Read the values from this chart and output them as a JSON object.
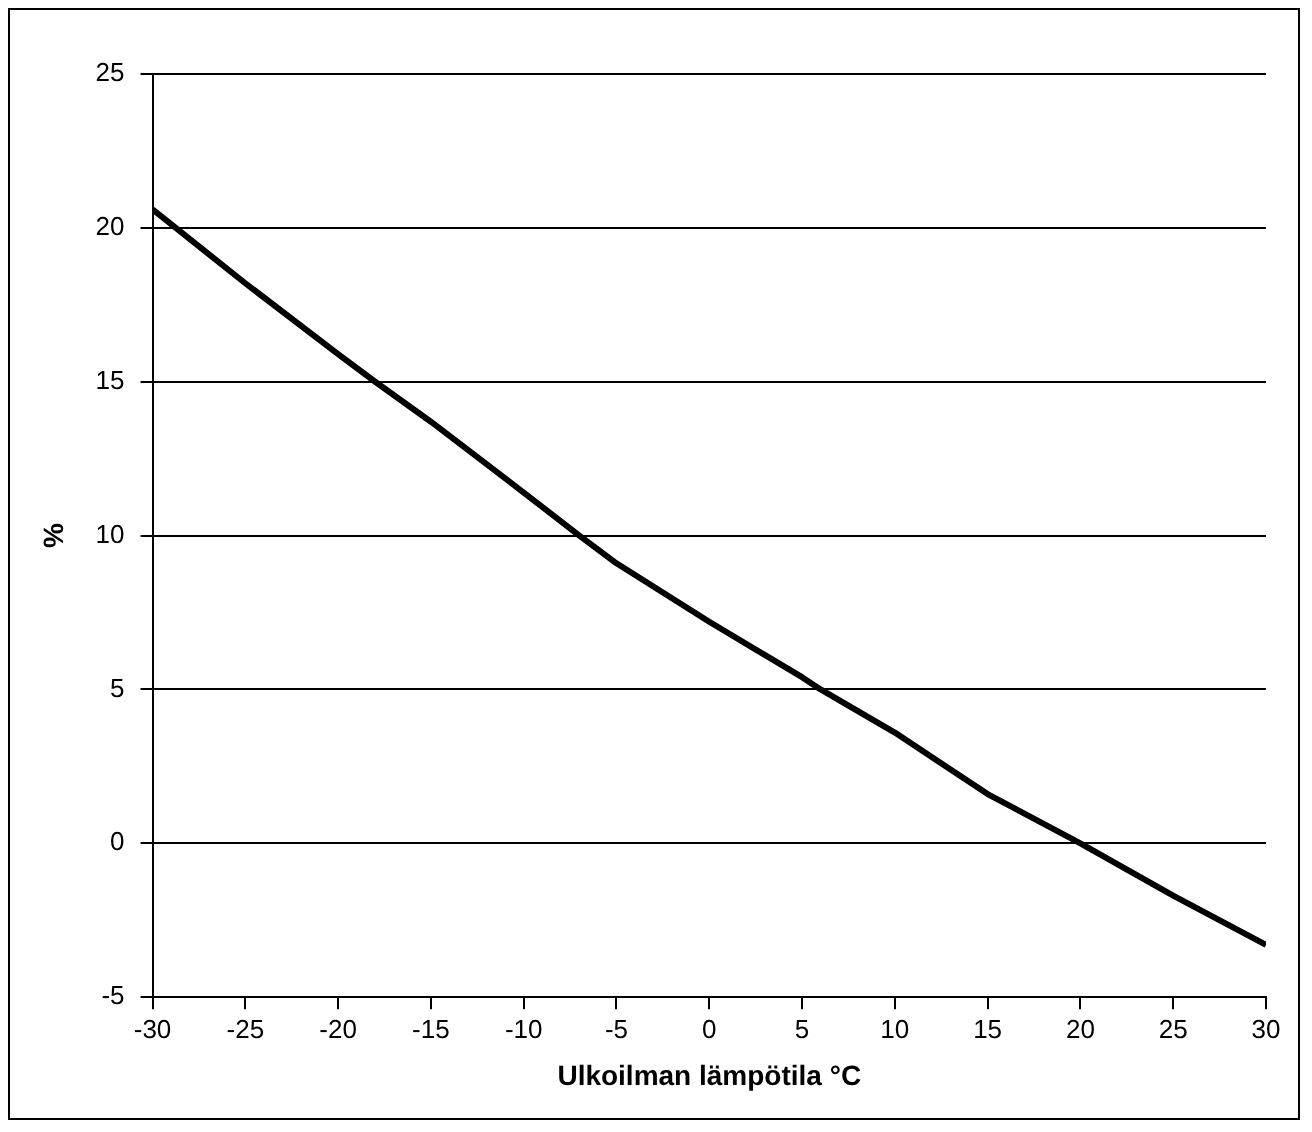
{
  "chart_data": {
    "type": "line",
    "xlabel": "Ulkoilman lämpötila °C",
    "ylabel": "%",
    "x": [
      -30,
      -25,
      -20,
      -18,
      -15,
      -10,
      -7,
      -5,
      0,
      5,
      6,
      10,
      15,
      20,
      25,
      30
    ],
    "series": [
      {
        "color": "#000000",
        "values": [
          20.6,
          18.2,
          15.9,
          15,
          13.7,
          11.4,
          10,
          9.1,
          7.2,
          5.4,
          5,
          3.6,
          1.6,
          0,
          -1.7,
          -3.3
        ]
      }
    ],
    "xlim": [
      -30,
      30
    ],
    "xticks": [
      -30,
      -25,
      -20,
      -15,
      -10,
      -5,
      0,
      5,
      10,
      15,
      20,
      25,
      30
    ],
    "ylim": [
      -5,
      25
    ],
    "yticks": [
      -5,
      0,
      5,
      10,
      15,
      20,
      25
    ],
    "grid": "y",
    "legend": false,
    "marker": "none",
    "line_style": "solid"
  }
}
